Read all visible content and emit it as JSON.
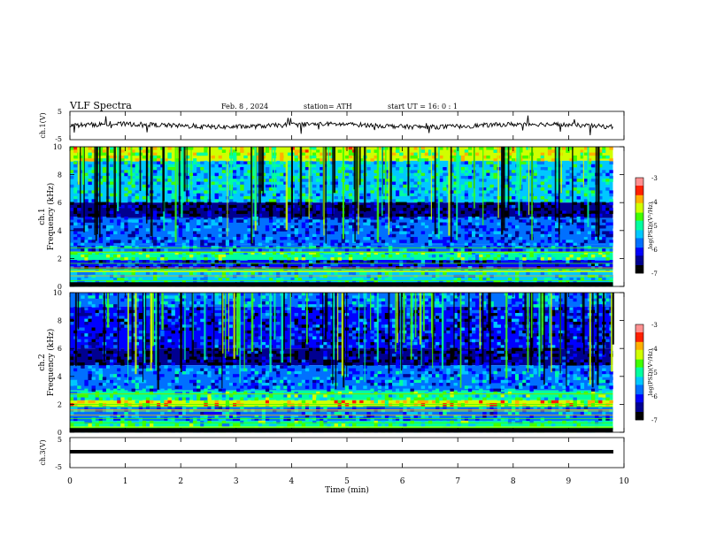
{
  "header": {
    "title": "VLF  Spectra",
    "date": "Feb. 8  , 2024",
    "station": "station= ATH",
    "start": "start  UT  =   16: 0  : 1"
  },
  "chart_data": [
    {
      "type": "line",
      "name": "ch1-waveform",
      "ylabel": "ch.1(V)",
      "yticks": [
        "5",
        "-5"
      ],
      "ylim": [
        -5,
        5
      ],
      "xlim": [
        0,
        9.8
      ],
      "description_level": 0
    },
    {
      "type": "heatmap",
      "name": "ch1-spectrogram",
      "ylabel": "ch.1\nFrequency  (kHz)",
      "ylabel_lines": [
        "ch.1",
        "Frequency  (kHz)"
      ],
      "yticks": [
        "0",
        "2",
        "4",
        "6",
        "8",
        "10"
      ],
      "ylim": [
        0,
        10
      ],
      "xlim": [
        0,
        9.8
      ],
      "colorbar": {
        "label": "log(PSD)(V²/Hz)",
        "ticks": [
          "-3",
          "-4",
          "-5",
          "-6",
          "-7"
        ],
        "range": [
          -7,
          -3
        ]
      },
      "bands_khz": [
        {
          "low": 9.0,
          "high": 10.0,
          "level": -4.4
        },
        {
          "low": 6.0,
          "high": 9.0,
          "level": -5.3
        },
        {
          "low": 4.9,
          "high": 6.0,
          "level": -6.6
        },
        {
          "low": 3.0,
          "high": 4.9,
          "level": -5.9
        },
        {
          "low": 2.4,
          "high": 3.0,
          "level": -5.7
        },
        {
          "low": 1.9,
          "high": 2.4,
          "level": -4.9
        },
        {
          "low": 1.2,
          "high": 1.9,
          "level": -6.2
        },
        {
          "low": 0.0,
          "high": 1.2,
          "level": -5.2
        }
      ]
    },
    {
      "type": "heatmap",
      "name": "ch2-spectrogram",
      "ylabel": "ch.2\nFrequency  (kHz)",
      "ylabel_lines": [
        "ch.2",
        "Frequency  (kHz)"
      ],
      "yticks": [
        "0",
        "2",
        "4",
        "6",
        "8",
        "10"
      ],
      "ylim": [
        0,
        10
      ],
      "xlim": [
        0,
        9.8
      ],
      "colorbar": {
        "label": "log(PSD)(V²/Hz)",
        "ticks": [
          "-3",
          "-4",
          "-5",
          "-6",
          "-7"
        ],
        "range": [
          -7,
          -3
        ]
      },
      "bands_khz": [
        {
          "low": 9.0,
          "high": 10.0,
          "level": -5.6
        },
        {
          "low": 6.0,
          "high": 9.0,
          "level": -6.1
        },
        {
          "low": 4.8,
          "high": 6.0,
          "level": -6.5
        },
        {
          "low": 3.0,
          "high": 4.8,
          "level": -5.7
        },
        {
          "low": 2.3,
          "high": 3.0,
          "level": -5.0
        },
        {
          "low": 1.8,
          "high": 2.3,
          "level": -4.2
        },
        {
          "low": 0.8,
          "high": 1.8,
          "level": -5.6
        },
        {
          "low": 0.0,
          "high": 0.8,
          "level": -5.0
        }
      ]
    },
    {
      "type": "line",
      "name": "ch3-waveform",
      "ylabel": "ch.3(V)",
      "yticks": [
        "5",
        "-5"
      ],
      "ylim": [
        -5,
        5
      ],
      "xlim": [
        0,
        9.8
      ],
      "level_v": 0
    }
  ],
  "xaxis": {
    "label": "Time  (min)",
    "ticks": [
      "0",
      "1",
      "2",
      "3",
      "4",
      "5",
      "6",
      "7",
      "8",
      "9",
      "10"
    ],
    "range": [
      0,
      10
    ]
  },
  "colors": {
    "palette": [
      "#000000",
      "#000090",
      "#0000ff",
      "#0070ff",
      "#00c8ff",
      "#00ffa0",
      "#40ff00",
      "#d0ff00",
      "#ffb000",
      "#ff2000",
      "#ff9090",
      "#ffffff"
    ]
  }
}
